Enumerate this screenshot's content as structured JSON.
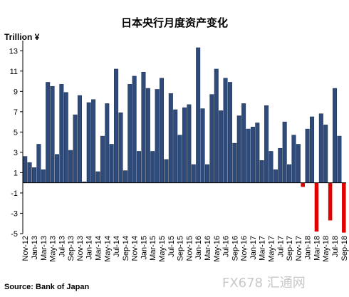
{
  "chart_data": {
    "type": "bar",
    "title": "日本央行月度资产变化",
    "ylabel": "Trillion ¥",
    "ylim": [
      -5,
      14
    ],
    "yticks": [
      -5,
      -3,
      -1,
      1,
      3,
      5,
      7,
      9,
      11,
      13
    ],
    "source": "Source: Bank of Japan",
    "watermark": "FX678 汇通网",
    "colors": {
      "positive": "#2e4b7c",
      "negative": "#e00000",
      "edge": "#1a2a48"
    },
    "tick_labels": [
      "Nov-12",
      "Jan-13",
      "Mar-13",
      "May-13",
      "Jul-13",
      "Sep-13",
      "Nov-13",
      "Jan-14",
      "Mar-14",
      "May-14",
      "Jul-14",
      "Sep-14",
      "Nov-14",
      "Jan-15",
      "Mar-15",
      "May-15",
      "Jul-15",
      "Sep-15",
      "Nov-15",
      "Jan-16",
      "Mar-16",
      "May-16",
      "Jul-16",
      "Sep-16",
      "Nov-16",
      "Jan-17",
      "Mar-17",
      "May-17",
      "Jul-17",
      "Sep-17",
      "Nov-17",
      "Jan-18",
      "Mar-18",
      "May-18",
      "Jul-18",
      "Sep-18"
    ],
    "values": [
      2.6,
      2.0,
      1.5,
      3.8,
      1.3,
      9.9,
      9.5,
      2.8,
      9.7,
      8.9,
      3.2,
      6.7,
      8.6,
      0.1,
      7.9,
      8.2,
      1.1,
      4.6,
      7.8,
      3.8,
      11.2,
      6.9,
      1.2,
      9.7,
      10.5,
      3.1,
      10.9,
      9.3,
      3.1,
      9.2,
      10.3,
      2.3,
      8.8,
      7.2,
      4.7,
      7.4,
      7.7,
      1.8,
      13.3,
      7.3,
      1.8,
      8.7,
      11.2,
      7.1,
      10.3,
      9.9,
      3.9,
      6.6,
      7.8,
      5.3,
      5.5,
      5.9,
      2.2,
      7.6,
      3.1,
      1.3,
      3.4,
      6.0,
      1.8,
      4.7,
      3.8,
      -0.4,
      5.3,
      6.5,
      -4.8,
      6.8,
      5.7,
      -3.7,
      9.3,
      4.6,
      -4.9
    ]
  }
}
